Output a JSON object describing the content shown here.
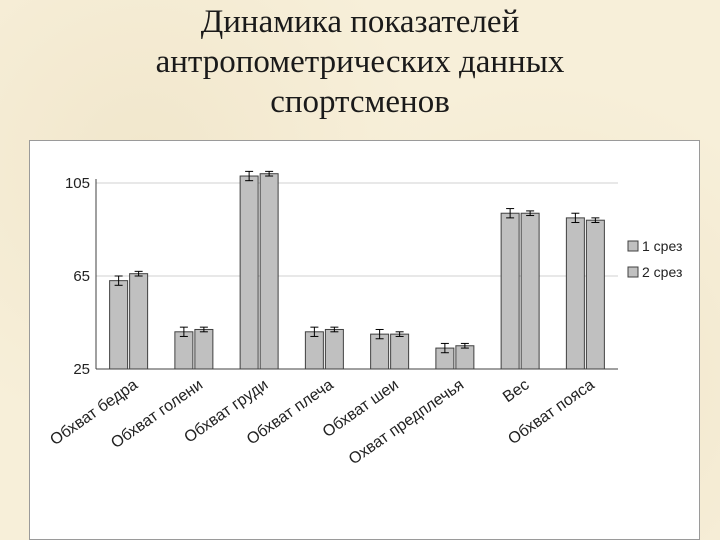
{
  "slide": {
    "title_lines": [
      "Динамика показателей",
      "антропометрических данных",
      "спортсменов"
    ]
  },
  "chart_data": {
    "type": "bar",
    "categories": [
      "Обхват бедра",
      "Обхват голени",
      "Обхват груди",
      "Обхват плеча",
      "Обхват шеи",
      "Охват предплечья",
      "Вес",
      "Обхват пояса"
    ],
    "series": [
      {
        "name": "1 срез",
        "values": [
          63,
          41,
          108,
          41,
          40,
          34,
          92,
          90
        ],
        "errors": [
          2,
          2,
          2,
          2,
          2,
          2,
          2,
          2
        ]
      },
      {
        "name": "2 срез",
        "values": [
          66,
          42,
          109,
          42,
          40,
          35,
          92,
          89
        ],
        "errors": [
          1,
          1,
          1,
          1,
          1,
          1,
          1,
          1
        ]
      }
    ],
    "yticks": [
      25,
      65,
      105
    ],
    "ylim": [
      25,
      105
    ],
    "title": "",
    "xlabel": "",
    "ylabel": "",
    "legend": "right",
    "grid": "horizontal",
    "colors": {
      "bar": "#c0c0c0",
      "bar_stroke": "#404040",
      "grid": "#d0d0d0",
      "axis": "#404040"
    }
  }
}
